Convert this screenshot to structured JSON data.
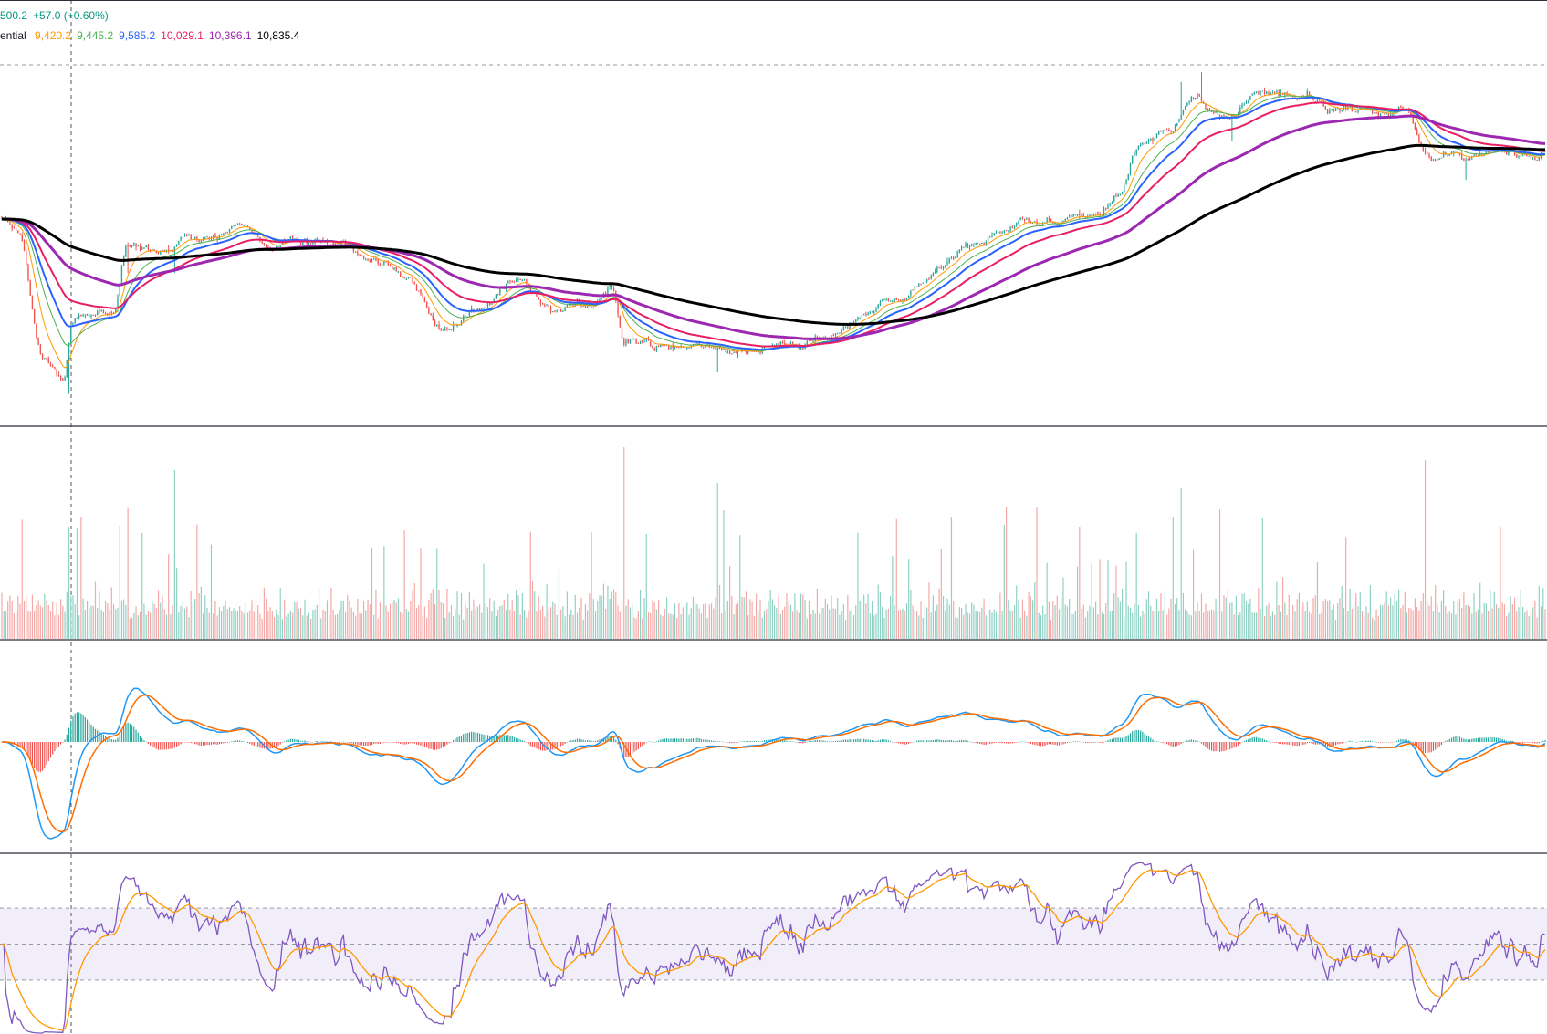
{
  "header": {
    "price_text": "500.2",
    "change_text": "+57.0 (+0.60%)",
    "ema_label": "ential",
    "ema_values": [
      "9,420.2",
      "9,445.2",
      "9,585.2",
      "10,029.1",
      "10,396.1",
      "10,835.4"
    ]
  },
  "colors": {
    "up": "#26a69a",
    "down": "#ef5350",
    "change_text": "#089981",
    "ema_label": "#131722",
    "ema": [
      "#ff9800",
      "#4caf50",
      "#2962ff",
      "#e91e63",
      "#9c27b0",
      "#000000"
    ],
    "macd_line": "#2196f3",
    "signal_line": "#ff6d00",
    "rsi_line": "#7e57c2",
    "rsi_ma": "#ff9800",
    "rsi_band": "#7e57c2",
    "grid_dash": "#9598a1",
    "pane_border": "#2a2e39"
  },
  "chart_data": [
    {
      "type": "candlestick",
      "pane": "price",
      "ylim": [
        8600,
        11800
      ],
      "series": [
        {
          "name": "9,420.2",
          "values": []
        },
        {
          "name": "9,445.2",
          "values": []
        },
        {
          "name": "9,585.2",
          "values": []
        },
        {
          "name": "10,029.1",
          "values": []
        },
        {
          "name": "10,396.1",
          "values": []
        },
        {
          "name": "10,835.4",
          "values": []
        }
      ],
      "price_keypoints": [
        [
          0,
          10150
        ],
        [
          8,
          10050
        ],
        [
          20,
          9100
        ],
        [
          30,
          8900
        ],
        [
          35,
          9350
        ],
        [
          55,
          9450
        ],
        [
          62,
          10000
        ],
        [
          80,
          9950
        ],
        [
          95,
          9980
        ],
        [
          120,
          10100
        ],
        [
          135,
          9950
        ],
        [
          165,
          9950
        ],
        [
          185,
          9800
        ],
        [
          200,
          9700
        ],
        [
          215,
          9300
        ],
        [
          235,
          9450
        ],
        [
          255,
          9650
        ],
        [
          268,
          9450
        ],
        [
          290,
          9500
        ],
        [
          300,
          9600
        ],
        [
          306,
          9200
        ],
        [
          330,
          9150
        ],
        [
          360,
          9120
        ],
        [
          385,
          9120
        ],
        [
          400,
          9220
        ],
        [
          420,
          9350
        ],
        [
          440,
          9500
        ],
        [
          455,
          9700
        ],
        [
          480,
          9950
        ],
        [
          500,
          10150
        ],
        [
          520,
          10150
        ],
        [
          540,
          10200
        ],
        [
          550,
          10350
        ],
        [
          560,
          10750
        ],
        [
          575,
          10900
        ],
        [
          585,
          11100
        ],
        [
          595,
          11000
        ],
        [
          605,
          10950
        ],
        [
          620,
          11150
        ],
        [
          640,
          11150
        ],
        [
          660,
          11050
        ],
        [
          690,
          11000
        ],
        [
          700,
          10700
        ],
        [
          720,
          10650
        ],
        [
          740,
          10700
        ],
        [
          760,
          10650
        ]
      ]
    },
    {
      "type": "bar",
      "pane": "volume",
      "values": []
    },
    {
      "type": "line",
      "pane": "macd",
      "series": [
        {
          "name": "",
          "values": []
        },
        {
          "name": "",
          "values": []
        }
      ],
      "histogram": []
    },
    {
      "type": "line",
      "pane": "rsi",
      "ylim": [
        0,
        100
      ],
      "band": [
        30,
        70
      ],
      "midline": 50,
      "series": [
        {
          "name": "",
          "values": []
        },
        {
          "name": "",
          "values": []
        }
      ]
    }
  ]
}
